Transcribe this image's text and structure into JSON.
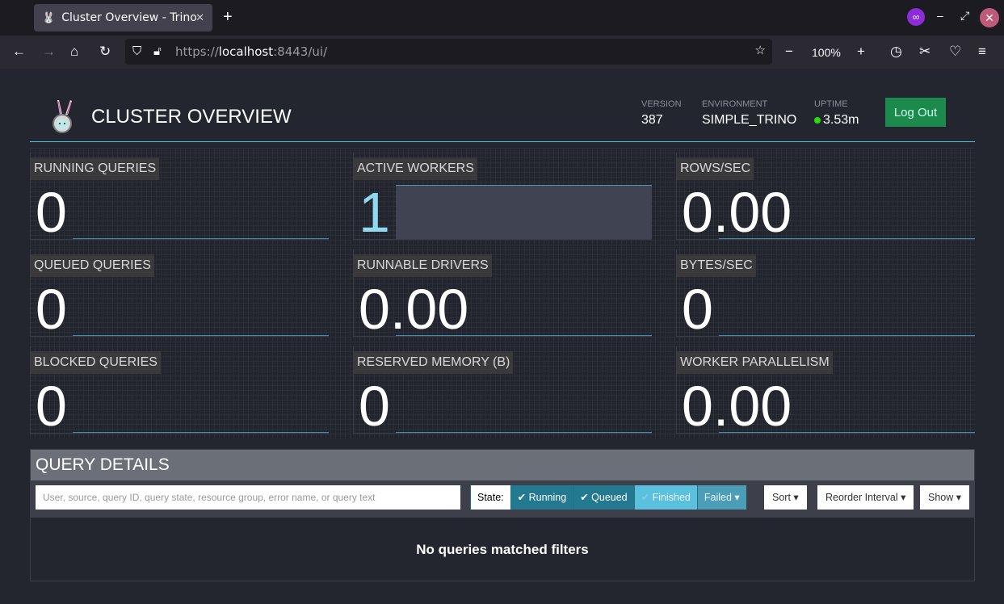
{
  "browser": {
    "tab_title": "Cluster Overview - Trino",
    "url_prefix": "https://",
    "url_host": "localhost",
    "url_rest": ":8443/ui/",
    "zoom": "100%"
  },
  "header": {
    "title": "CLUSTER OVERVIEW",
    "version_label": "VERSION",
    "version": "387",
    "environment_label": "ENVIRONMENT",
    "environment": "SIMPLE_TRINO",
    "uptime_label": "UPTIME",
    "uptime": "3.53m",
    "logout": "Log Out",
    "status_color": "#26e000"
  },
  "metrics": [
    {
      "label": "RUNNING QUERIES",
      "value": "0"
    },
    {
      "label": "ACTIVE WORKERS",
      "value": "1"
    },
    {
      "label": "ROWS/SEC",
      "value": "0.00"
    },
    {
      "label": "QUEUED QUERIES",
      "value": "0"
    },
    {
      "label": "RUNNABLE DRIVERS",
      "value": "0.00"
    },
    {
      "label": "BYTES/SEC",
      "value": "0"
    },
    {
      "label": "BLOCKED QUERIES",
      "value": "0"
    },
    {
      "label": "RESERVED MEMORY (B)",
      "value": "0"
    },
    {
      "label": "WORKER PARALLELISM",
      "value": "0.00"
    }
  ],
  "query_details": {
    "title": "QUERY DETAILS",
    "search_placeholder": "User, source, query ID, query state, resource group, error name, or query text",
    "state_label": "State:",
    "states": [
      {
        "label": "Running",
        "checked": true
      },
      {
        "label": "Queued",
        "checked": true
      },
      {
        "label": "Finished",
        "checked": false
      },
      {
        "label": "Failed",
        "checked": false
      }
    ],
    "sort": "Sort",
    "reorder": "Reorder Interval",
    "show": "Show",
    "empty": "No queries matched filters"
  }
}
